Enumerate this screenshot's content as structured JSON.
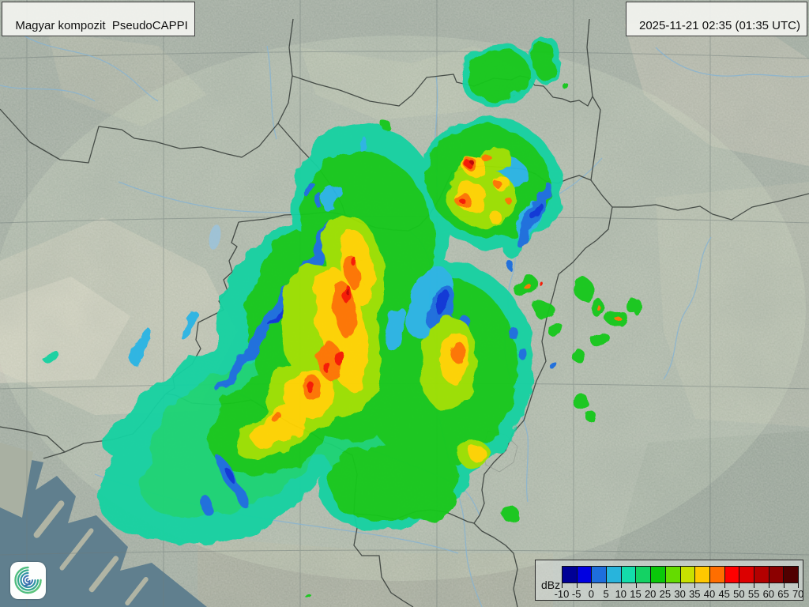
{
  "header": {
    "product_label": "Magyar kompozit  PseudoCAPPI",
    "time_label": "2025-11-21 02:35 (01:35 UTC)"
  },
  "legend": {
    "unit_label": "dBz",
    "tick_labels": [
      "-10",
      "-5",
      "0",
      "5",
      "10",
      "15",
      "20",
      "25",
      "30",
      "35",
      "40",
      "45",
      "50",
      "55",
      "60",
      "65",
      "70"
    ],
    "colors": [
      "#000096",
      "#0000e1",
      "#1e6edc",
      "#28b4dc",
      "#14dcaa",
      "#14d264",
      "#0ac80a",
      "#64dc00",
      "#c8e100",
      "#ffc800",
      "#ff6e00",
      "#ff0000",
      "#dc0000",
      "#b40000",
      "#8c0000",
      "#500000"
    ]
  },
  "map": {
    "colors": {
      "land": "#a5afa4",
      "range_area": "#d2dcc4",
      "sea": "#607f8e",
      "border": "#3a403c",
      "river": "#8ab4d0",
      "grid": "#6e7a78",
      "echo_teal": "#15d1a1",
      "echo_green": "#18c81f",
      "echo_yellow": "#ffd400",
      "echo_orange": "#ff7400",
      "echo_red": "#f81800",
      "echo_blue": "#1e6ede"
    }
  }
}
